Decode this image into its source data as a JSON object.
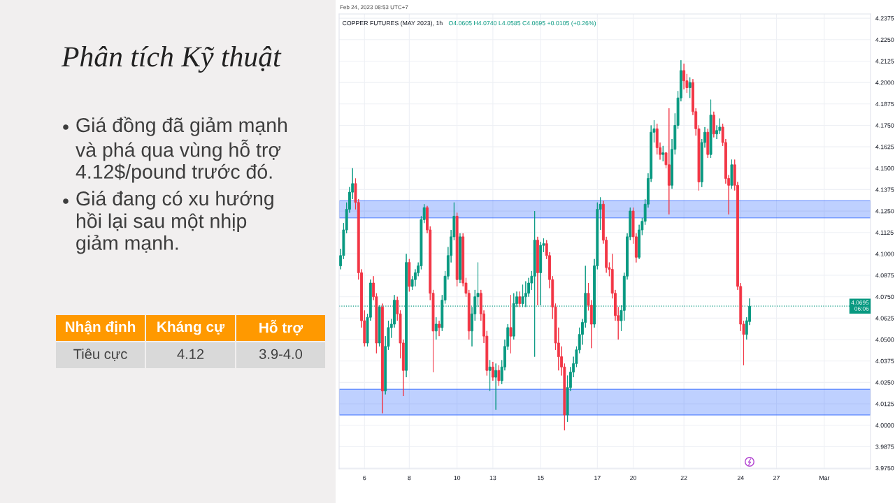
{
  "chart_data": [
    {
      "type": "other",
      "title": "Phân tích Kỹ thuật",
      "annotations": [
        "Giá đồng đã giảm mạnh và phá qua vùng hỗ trợ 4.12$/pound trước đó.",
        "Giá đang có xu hướng hồi lại sau một nhịp giảm mạnh."
      ]
    },
    {
      "type": "other",
      "categories": [
        "Nhận định",
        "Kháng cự",
        "Hỗ trợ"
      ],
      "annotations": [
        "Tiêu cực",
        "4.12",
        "3.9-4.0"
      ]
    },
    {
      "type": "candlestick",
      "title": "COPPER FUTURES (MAY 2023), 1h",
      "subtitle": "O4.0605 H4.0740 L4.0585 C4.0695 +0.0105 (+0.26%)",
      "annotations": [
        "Feb 24, 2023 08:53 UTC+7"
      ],
      "categories": [
        null,
        null,
        null,
        null,
        null,
        null,
        null,
        null,
        "6",
        null,
        null,
        null,
        null,
        null,
        null,
        null,
        null,
        null,
        null,
        null,
        null,
        null,
        null,
        "8",
        null,
        null,
        null,
        null,
        null,
        null,
        null,
        null,
        null,
        null,
        null,
        null,
        null,
        null,
        null,
        "10",
        null,
        null,
        null,
        null,
        null,
        null,
        null,
        null,
        null,
        null,
        null,
        "13",
        null,
        null,
        null,
        null,
        null,
        null,
        null,
        null,
        null,
        null,
        null,
        null,
        null,
        null,
        null,
        "15",
        null,
        null,
        null,
        null,
        null,
        null,
        null,
        null,
        null,
        null,
        null,
        null,
        null,
        null,
        null,
        null,
        null,
        null,
        "17",
        null,
        null,
        null,
        null,
        null,
        null,
        null,
        null,
        null,
        null,
        null,
        "20",
        null,
        null,
        null,
        null,
        null,
        null,
        null,
        null,
        null,
        null,
        null,
        null,
        null,
        null,
        null,
        null,
        "22",
        null,
        null,
        null,
        null,
        null,
        null,
        null,
        null,
        null,
        null,
        null,
        null,
        null,
        null,
        null,
        null,
        null,
        null,
        "24",
        null,
        null,
        null,
        null,
        null,
        null,
        null,
        null,
        null,
        null,
        null,
        "27",
        null,
        null,
        null,
        null,
        null,
        null,
        null,
        null,
        null,
        null,
        null,
        null,
        null,
        null,
        null,
        "Mar",
        null,
        null,
        null,
        null,
        null,
        null,
        null,
        null,
        null,
        null,
        null,
        null,
        null,
        null,
        null
      ],
      "ohlc": [
        [
          4.093,
          4.103,
          4.091,
          4.099
        ],
        [
          4.099,
          4.118,
          4.097,
          4.114
        ],
        [
          4.114,
          4.13,
          4.112,
          4.126
        ],
        [
          4.126,
          4.139,
          4.124,
          4.136
        ],
        [
          4.136,
          4.15,
          4.132,
          4.141
        ],
        [
          4.141,
          4.144,
          4.126,
          4.13
        ],
        [
          4.13,
          4.132,
          4.085,
          4.089
        ],
        [
          4.089,
          4.091,
          4.057,
          4.061
        ],
        [
          4.061,
          4.067,
          4.046,
          4.048
        ],
        [
          4.048,
          4.065,
          4.046,
          4.063
        ],
        [
          4.063,
          4.085,
          4.061,
          4.083
        ],
        [
          4.083,
          4.087,
          4.073,
          4.075
        ],
        [
          4.075,
          4.077,
          4.042,
          4.048
        ],
        [
          4.048,
          4.07,
          4.046,
          4.069
        ],
        [
          4.069,
          4.071,
          4.007,
          4.02
        ],
        [
          4.02,
          4.052,
          4.018,
          4.046
        ],
        [
          4.046,
          4.061,
          4.044,
          4.057
        ],
        [
          4.057,
          4.062,
          4.051,
          4.059
        ],
        [
          4.059,
          4.076,
          4.057,
          4.073
        ],
        [
          4.073,
          4.075,
          4.061,
          4.065
        ],
        [
          4.065,
          4.067,
          4.039,
          4.048
        ],
        [
          4.048,
          4.05,
          4.017,
          4.032
        ],
        [
          4.032,
          4.1,
          4.028,
          4.095
        ],
        [
          4.095,
          4.097,
          4.078,
          4.081
        ],
        [
          4.081,
          4.087,
          4.079,
          4.085
        ],
        [
          4.085,
          4.091,
          4.081,
          4.089
        ],
        [
          4.089,
          4.095,
          4.087,
          4.093
        ],
        [
          4.093,
          4.122,
          4.091,
          4.12
        ],
        [
          4.12,
          4.129,
          4.118,
          4.127
        ],
        [
          4.127,
          4.128,
          4.112,
          4.114
        ],
        [
          4.114,
          4.116,
          4.073,
          4.077
        ],
        [
          4.077,
          4.079,
          4.031,
          4.055
        ],
        [
          4.055,
          4.063,
          4.05,
          4.059
        ],
        [
          4.059,
          4.061,
          4.052,
          4.057
        ],
        [
          4.057,
          4.076,
          4.055,
          4.073
        ],
        [
          4.073,
          4.09,
          4.071,
          4.087
        ],
        [
          4.087,
          4.104,
          4.085,
          4.099
        ],
        [
          4.099,
          4.114,
          4.095,
          4.11
        ],
        [
          4.11,
          4.13,
          4.108,
          4.122
        ],
        [
          4.122,
          4.124,
          4.081,
          4.085
        ],
        [
          4.085,
          4.112,
          4.083,
          4.11
        ],
        [
          4.11,
          4.112,
          4.081,
          4.083
        ],
        [
          4.083,
          4.086,
          4.075,
          4.077
        ],
        [
          4.077,
          4.079,
          4.05,
          4.055
        ],
        [
          4.055,
          4.069,
          4.046,
          4.065
        ],
        [
          4.065,
          4.079,
          4.061,
          4.075
        ],
        [
          4.075,
          4.095,
          4.069,
          4.077
        ],
        [
          4.077,
          4.079,
          4.061,
          4.065
        ],
        [
          4.065,
          4.067,
          4.048,
          4.052
        ],
        [
          4.052,
          4.055,
          4.029,
          4.032
        ],
        [
          4.032,
          4.038,
          4.02,
          4.034
        ],
        [
          4.034,
          4.037,
          4.026,
          4.028
        ],
        [
          4.028,
          4.036,
          4.009,
          4.032
        ],
        [
          4.032,
          4.035,
          4.023,
          4.026
        ],
        [
          4.026,
          4.038,
          4.024,
          4.034
        ],
        [
          4.034,
          4.05,
          4.032,
          4.046
        ],
        [
          4.046,
          4.059,
          4.044,
          4.057
        ],
        [
          4.057,
          4.076,
          4.042,
          4.052
        ],
        [
          4.052,
          4.077,
          4.05,
          4.071
        ],
        [
          4.071,
          4.078,
          4.069,
          4.075
        ],
        [
          4.075,
          4.078,
          4.069,
          4.071
        ],
        [
          4.071,
          4.082,
          4.069,
          4.075
        ],
        [
          4.075,
          4.084,
          4.069,
          4.077
        ],
        [
          4.077,
          4.086,
          4.075,
          4.083
        ],
        [
          4.083,
          4.09,
          4.079,
          4.087
        ],
        [
          4.087,
          4.125,
          4.04,
          4.108
        ],
        [
          4.108,
          4.11,
          4.07,
          4.089
        ],
        [
          4.089,
          4.107,
          4.07,
          4.105
        ],
        [
          4.105,
          4.109,
          4.101,
          4.106
        ],
        [
          4.106,
          4.108,
          4.097,
          4.099
        ],
        [
          4.099,
          4.101,
          4.08,
          4.085
        ],
        [
          4.085,
          4.087,
          4.062,
          4.069
        ],
        [
          4.069,
          4.071,
          4.044,
          4.048
        ],
        [
          4.048,
          4.057,
          4.032,
          4.04
        ],
        [
          4.04,
          4.046,
          4.029,
          4.034
        ],
        [
          4.034,
          4.036,
          3.997,
          4.006
        ],
        [
          4.006,
          4.029,
          4.002,
          4.022
        ],
        [
          4.022,
          4.034,
          4.02,
          4.031
        ],
        [
          4.031,
          4.04,
          4.028,
          4.036
        ],
        [
          4.036,
          4.046,
          4.034,
          4.044
        ],
        [
          4.044,
          4.057,
          4.042,
          4.053
        ],
        [
          4.053,
          4.062,
          4.047,
          4.06
        ],
        [
          4.06,
          4.093,
          4.057,
          4.077
        ],
        [
          4.077,
          4.083,
          4.067,
          4.07
        ],
        [
          4.07,
          4.073,
          4.045,
          4.059
        ],
        [
          4.059,
          4.097,
          4.057,
          4.093
        ],
        [
          4.093,
          4.13,
          4.091,
          4.126
        ],
        [
          4.126,
          4.133,
          4.114,
          4.129
        ],
        [
          4.129,
          4.131,
          4.106,
          4.108
        ],
        [
          4.108,
          4.11,
          4.089,
          4.092
        ],
        [
          4.092,
          4.095,
          4.087,
          4.091
        ],
        [
          4.091,
          4.1,
          4.074,
          4.077
        ],
        [
          4.077,
          4.079,
          4.061,
          4.064
        ],
        [
          4.064,
          4.069,
          4.05,
          4.061
        ],
        [
          4.061,
          4.07,
          4.055,
          4.067
        ],
        [
          4.067,
          4.089,
          4.061,
          4.087
        ],
        [
          4.087,
          4.112,
          4.085,
          4.11
        ],
        [
          4.11,
          4.127,
          4.108,
          4.125
        ],
        [
          4.125,
          4.127,
          4.106,
          4.11
        ],
        [
          4.11,
          4.112,
          4.095,
          4.098
        ],
        [
          4.098,
          4.117,
          4.097,
          4.114
        ],
        [
          4.114,
          4.121,
          4.111,
          4.119
        ],
        [
          4.119,
          4.132,
          4.117,
          4.129
        ],
        [
          4.129,
          4.147,
          4.127,
          4.144
        ],
        [
          4.144,
          4.175,
          4.142,
          4.171
        ],
        [
          4.171,
          4.178,
          4.165,
          4.173
        ],
        [
          4.173,
          4.176,
          4.158,
          4.162
        ],
        [
          4.162,
          4.165,
          4.155,
          4.158
        ],
        [
          4.158,
          4.163,
          4.154,
          4.159
        ],
        [
          4.159,
          4.159,
          4.15,
          4.152
        ],
        [
          4.152,
          4.185,
          4.123,
          4.14
        ],
        [
          4.14,
          4.167,
          4.138,
          4.161
        ],
        [
          4.161,
          4.182,
          4.158,
          4.175
        ],
        [
          4.175,
          4.195,
          4.173,
          4.191
        ],
        [
          4.191,
          4.213,
          4.189,
          4.207
        ],
        [
          4.207,
          4.211,
          4.196,
          4.201
        ],
        [
          4.201,
          4.205,
          4.194,
          4.197
        ],
        [
          4.197,
          4.203,
          4.191,
          4.2
        ],
        [
          4.2,
          4.202,
          4.181,
          4.183
        ],
        [
          4.183,
          4.185,
          4.169,
          4.173
        ],
        [
          4.173,
          4.175,
          4.137,
          4.142
        ],
        [
          4.142,
          4.167,
          4.139,
          4.165
        ],
        [
          4.165,
          4.174,
          4.162,
          4.171
        ],
        [
          4.171,
          4.173,
          4.156,
          4.158
        ],
        [
          4.158,
          4.19,
          4.156,
          4.181
        ],
        [
          4.181,
          4.183,
          4.168,
          4.17
        ],
        [
          4.17,
          4.175,
          4.167,
          4.172
        ],
        [
          4.172,
          4.179,
          4.17,
          4.174
        ],
        [
          4.174,
          4.176,
          4.163,
          4.165
        ],
        [
          4.165,
          4.167,
          4.141,
          4.144
        ],
        [
          4.144,
          4.146,
          4.123,
          4.14
        ],
        [
          4.14,
          4.155,
          4.138,
          4.152
        ],
        [
          4.152,
          4.155,
          4.137,
          4.14
        ],
        [
          4.14,
          4.142,
          4.079,
          4.081
        ],
        [
          4.081,
          4.083,
          4.055,
          4.059
        ],
        [
          4.059,
          4.061,
          4.035,
          4.053
        ],
        [
          4.053,
          4.063,
          4.05,
          4.061
        ],
        [
          4.0605,
          4.074,
          4.0585,
          4.0695
        ],
        null,
        null,
        null,
        null,
        null,
        null,
        null,
        null,
        null,
        null,
        null,
        null,
        null,
        null,
        null,
        null,
        null,
        null,
        null,
        null,
        null,
        null,
        null,
        null,
        null,
        null,
        null,
        null,
        null,
        null,
        null,
        null,
        null,
        null,
        null,
        null,
        null,
        null,
        null,
        null
      ],
      "colors": [
        "#089981",
        "#089981",
        "#089981",
        "#089981",
        "#089981",
        "#f23645",
        "#f23645",
        "#f23645",
        "#f23645",
        "#089981",
        "#089981",
        "#f23645",
        "#f23645",
        "#089981",
        "#f23645",
        "#089981",
        "#089981",
        "#089981",
        "#089981",
        "#f23645",
        "#f23645",
        "#f23645",
        "#089981",
        "#f23645",
        "#089981",
        "#089981",
        "#089981",
        "#089981",
        "#089981",
        "#f23645",
        "#f23645",
        "#f23645",
        "#089981",
        "#f23645",
        "#089981",
        "#089981",
        "#089981",
        "#089981",
        "#089981",
        "#f23645",
        "#089981",
        "#f23645",
        "#f23645",
        "#f23645",
        "#089981",
        "#089981",
        "#089981",
        "#f23645",
        "#f23645",
        "#f23645",
        "#089981",
        "#f23645",
        "#089981",
        "#f23645",
        "#089981",
        "#089981",
        "#089981",
        "#f23645",
        "#089981",
        "#089981",
        "#f23645",
        "#089981",
        "#089981",
        "#089981",
        "#089981",
        "#089981",
        "#f23645",
        "#089981",
        "#089981",
        "#f23645",
        "#f23645",
        "#f23645",
        "#f23645",
        "#f23645",
        "#f23645",
        "#f23645",
        "#089981",
        "#089981",
        "#089981",
        "#089981",
        "#089981",
        "#089981",
        "#089981",
        "#f23645",
        "#f23645",
        "#089981",
        "#089981",
        "#089981",
        "#f23645",
        "#f23645",
        "#f23645",
        "#f23645",
        "#f23645",
        "#f23645",
        "#089981",
        "#089981",
        "#089981",
        "#089981",
        "#f23645",
        "#f23645",
        "#089981",
        "#089981",
        "#089981",
        "#089981",
        "#089981",
        "#089981",
        "#f23645",
        "#f23645",
        "#089981",
        "#f23645",
        "#f23645",
        "#089981",
        "#089981",
        "#089981",
        "#089981",
        "#f23645",
        "#f23645",
        "#089981",
        "#f23645",
        "#f23645",
        "#f23645",
        "#089981",
        "#089981",
        "#f23645",
        "#089981",
        "#f23645",
        "#089981",
        "#089981",
        "#f23645",
        "#f23645",
        "#f23645",
        "#089981",
        "#f23645",
        "#f23645",
        "#f23645",
        "#f23645",
        "#089981",
        "#089981",
        null,
        null,
        null,
        null,
        null,
        null,
        null,
        null,
        null,
        null,
        null,
        null,
        null,
        null,
        null,
        null,
        null,
        null,
        null,
        null,
        null,
        null,
        null,
        null,
        null,
        null,
        null,
        null,
        null,
        null,
        null,
        null,
        null,
        null,
        null,
        null,
        null,
        null,
        null,
        null
      ],
      "ylim": [
        3.9746,
        4.24
      ],
      "yticks": [
        {
          "value": 3.975,
          "label": "3.9750"
        },
        {
          "value": 3.9875,
          "label": "3.9875"
        },
        {
          "value": 4.0,
          "label": "4.0000"
        },
        {
          "value": 4.0125,
          "label": "4.0125"
        },
        {
          "value": 4.025,
          "label": "4.0250"
        },
        {
          "value": 4.0375,
          "label": "4.0375"
        },
        {
          "value": 4.05,
          "label": "4.0500"
        },
        {
          "value": 4.0625,
          "label": "4.0625"
        },
        {
          "value": 4.075,
          "label": "4.0750"
        },
        {
          "value": 4.0875,
          "label": "4.0875"
        },
        {
          "value": 4.1,
          "label": "4.1000"
        },
        {
          "value": 4.1125,
          "label": "4.1125"
        },
        {
          "value": 4.125,
          "label": "4.1250"
        },
        {
          "value": 4.1375,
          "label": "4.1375"
        },
        {
          "value": 4.15,
          "label": "4.1500"
        },
        {
          "value": 4.1625,
          "label": "4.1625"
        },
        {
          "value": 4.175,
          "label": "4.1750"
        },
        {
          "value": 4.1875,
          "label": "4.1875"
        },
        {
          "value": 4.2,
          "label": "4.2000"
        },
        {
          "value": 4.2125,
          "label": "4.2125"
        },
        {
          "value": 4.225,
          "label": "4.2250"
        },
        {
          "value": 4.2375,
          "label": "4.2375"
        }
      ],
      "grid": true,
      "bands": [
        {
          "axis": "y",
          "from": 4.121,
          "to": 4.131,
          "color": "#2962ff"
        },
        {
          "axis": "y",
          "from": 4.006,
          "to": 4.021,
          "color": "#2962ff"
        }
      ],
      "ref_lines": [
        {
          "axis": "y",
          "value": 4.0695,
          "label": "4.0695\n06:06",
          "color": "#089981",
          "line_style": "dotted"
        }
      ]
    }
  ]
}
